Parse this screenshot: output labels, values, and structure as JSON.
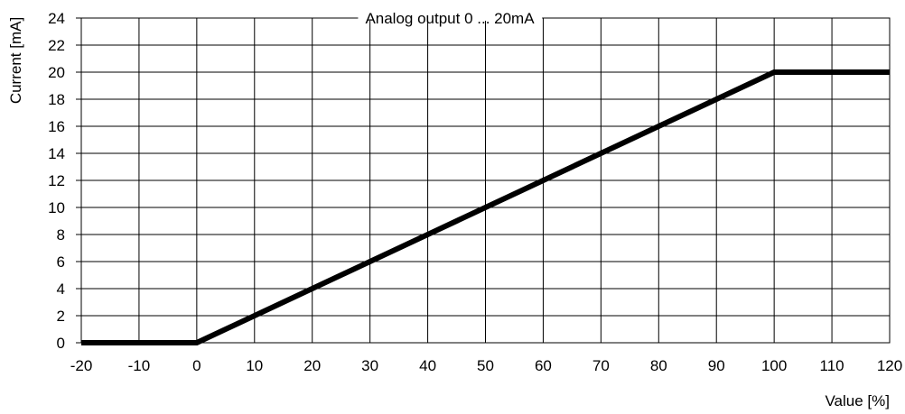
{
  "chart_data": {
    "type": "line",
    "title": "Analog output 0 ... 20mA",
    "xlabel": "Value [%]",
    "ylabel": "Current [mA]",
    "xlim": [
      -20,
      120
    ],
    "ylim": [
      0,
      24
    ],
    "xticks": [
      -20,
      -10,
      0,
      10,
      20,
      30,
      40,
      50,
      60,
      70,
      80,
      90,
      100,
      110,
      120
    ],
    "yticks": [
      0,
      2,
      4,
      6,
      8,
      10,
      12,
      14,
      16,
      18,
      20,
      22,
      24
    ],
    "grid": true,
    "series": [
      {
        "color": "#000000",
        "x": [
          -20,
          0,
          100,
          120
        ],
        "y": [
          0,
          0,
          20,
          20
        ]
      }
    ]
  }
}
